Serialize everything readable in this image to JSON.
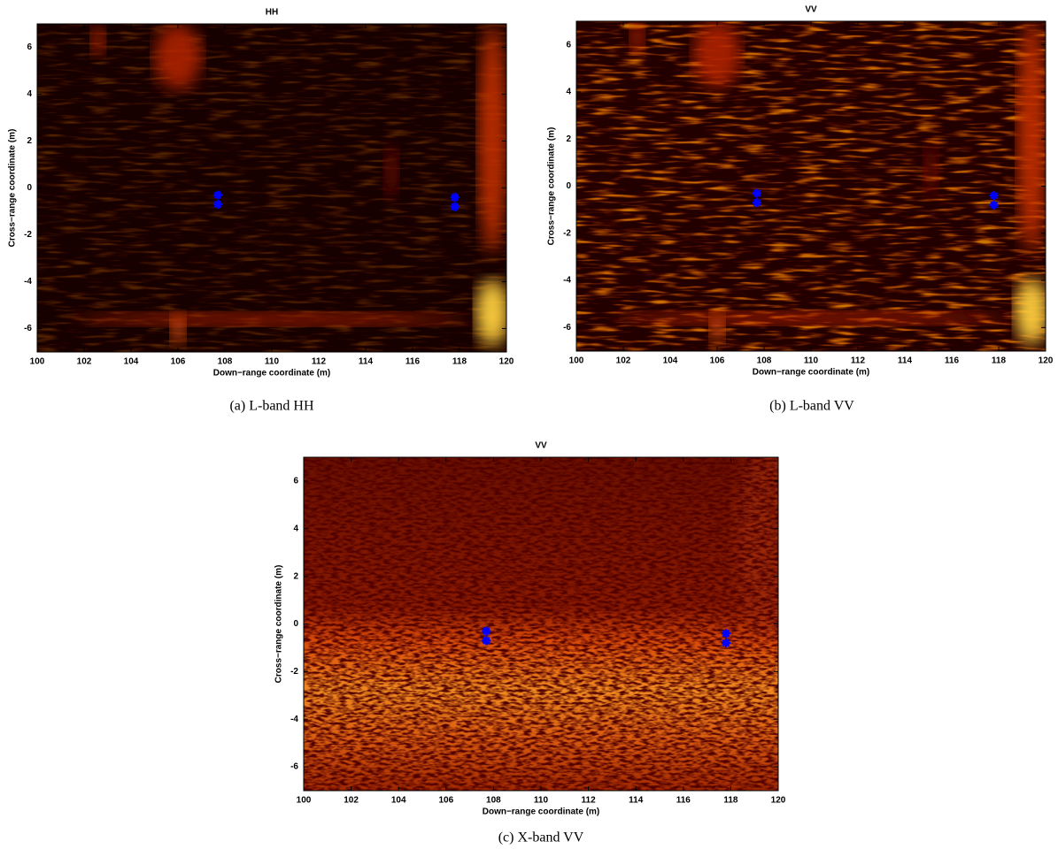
{
  "chart_data": [
    {
      "type": "scatter",
      "title": "HH",
      "caption": "(a) L-band HH",
      "xlabel": "Down−range coordinate (m)",
      "ylabel": "Cross−range coordinate (m)",
      "xlim": [
        100,
        120
      ],
      "ylim": [
        -7,
        7
      ],
      "xticks": [
        100,
        102,
        104,
        106,
        108,
        110,
        112,
        114,
        116,
        118,
        120
      ],
      "yticks": [
        -6,
        -4,
        -2,
        0,
        2,
        4,
        6
      ],
      "x": [
        107.7,
        107.7,
        117.8,
        117.8
      ],
      "values": [
        -0.3,
        -0.7,
        -0.4,
        -0.8
      ],
      "color": "#0000ff"
    },
    {
      "type": "scatter",
      "title": "VV",
      "caption": "(b) L-band VV",
      "xlabel": "Down−range coordinate (m)",
      "ylabel": "Cross−range coordinate (m)",
      "xlim": [
        100,
        120
      ],
      "ylim": [
        -7,
        7
      ],
      "xticks": [
        100,
        102,
        104,
        106,
        108,
        110,
        112,
        114,
        116,
        118,
        120
      ],
      "yticks": [
        -6,
        -4,
        -2,
        0,
        2,
        4,
        6
      ],
      "x": [
        107.7,
        107.7,
        117.8,
        117.8
      ],
      "values": [
        -0.3,
        -0.7,
        -0.4,
        -0.8
      ],
      "color": "#0000ff"
    },
    {
      "type": "scatter",
      "title": "VV",
      "caption": "(c) X-band VV",
      "xlabel": "Down−range coordinate (m)",
      "ylabel": "Cross−range coordinate (m)",
      "xlim": [
        100,
        120
      ],
      "ylim": [
        -7,
        7
      ],
      "xticks": [
        100,
        102,
        104,
        106,
        108,
        110,
        112,
        114,
        116,
        118,
        120
      ],
      "yticks": [
        -6,
        -4,
        -2,
        0,
        2,
        4,
        6
      ],
      "x": [
        107.7,
        107.7,
        117.8,
        117.8
      ],
      "values": [
        -0.3,
        -0.7,
        -0.4,
        -0.8
      ],
      "color": "#0000ff"
    }
  ]
}
